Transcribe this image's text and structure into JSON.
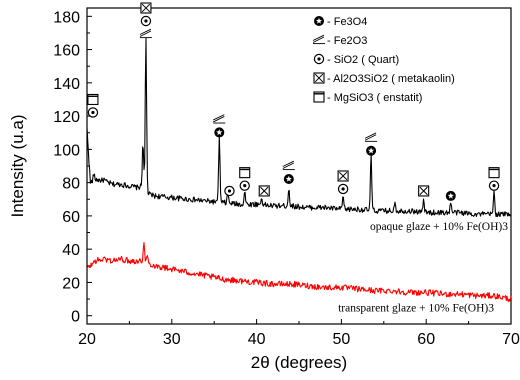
{
  "chart_data": {
    "type": "line",
    "xlabel": "2θ (degrees)",
    "ylabel": "Intensity (u.a)",
    "xlim": [
      20,
      70
    ],
    "ylim": [
      -5,
      185
    ],
    "xticks": [
      20,
      30,
      40,
      50,
      60,
      70
    ],
    "yticks": [
      0,
      20,
      40,
      60,
      80,
      100,
      120,
      140,
      160,
      180
    ],
    "grid": false,
    "legend_position": "top-right",
    "legend": [
      {
        "symbol": "circled-star",
        "label": "- Fe3O4"
      },
      {
        "symbol": "hatch-mark",
        "label": "- Fe2O3"
      },
      {
        "symbol": "circled-dot",
        "label": "- SiO2 ( Quart)"
      },
      {
        "symbol": "boxed-x",
        "label": "- Al2O3SiO2 ( metakaolin)"
      },
      {
        "symbol": "open-square",
        "label": "- MgSiO3 ( enstatit)"
      }
    ],
    "series": [
      {
        "label": "opaque glaze + 10% Fe(OH)3",
        "color": "#000000",
        "baseline": [
          [
            20,
            112
          ],
          [
            20.4,
            80
          ],
          [
            21,
            82
          ],
          [
            22,
            81
          ],
          [
            23,
            79
          ],
          [
            24,
            79
          ],
          [
            25,
            78
          ],
          [
            26,
            77
          ],
          [
            26.5,
            78
          ],
          [
            27.3,
            73
          ],
          [
            28,
            72
          ],
          [
            30,
            71
          ],
          [
            32,
            70
          ],
          [
            34,
            69
          ],
          [
            36,
            68
          ],
          [
            38,
            67
          ],
          [
            40,
            67
          ],
          [
            42,
            66
          ],
          [
            44,
            66
          ],
          [
            46,
            65
          ],
          [
            48,
            65
          ],
          [
            50,
            64
          ],
          [
            52,
            64
          ],
          [
            54,
            63
          ],
          [
            56,
            63
          ],
          [
            58,
            63
          ],
          [
            60,
            62
          ],
          [
            62,
            62
          ],
          [
            64,
            62
          ],
          [
            66,
            61
          ],
          [
            68,
            61
          ],
          [
            70,
            61
          ]
        ],
        "peaks": [
          [
            20.8,
            85
          ],
          [
            22,
            82
          ],
          [
            26.6,
            105
          ],
          [
            26.95,
            167
          ],
          [
            35.6,
            108
          ],
          [
            36.6,
            74
          ],
          [
            38.6,
            75
          ],
          [
            40.6,
            71
          ],
          [
            43.8,
            77
          ],
          [
            50.2,
            72
          ],
          [
            53.5,
            97
          ],
          [
            56.3,
            69
          ],
          [
            59.7,
            70
          ],
          [
            62.9,
            68
          ],
          [
            68.0,
            75
          ]
        ]
      },
      {
        "label": "transparent glaze + 10% Fe(OH)3",
        "color": "#ff0000",
        "baseline": [
          [
            20,
            28
          ],
          [
            21,
            33
          ],
          [
            22,
            34
          ],
          [
            23,
            33
          ],
          [
            24,
            34
          ],
          [
            25,
            33
          ],
          [
            26,
            33
          ],
          [
            27,
            32
          ],
          [
            28,
            30
          ],
          [
            30,
            28
          ],
          [
            32,
            26
          ],
          [
            34,
            24
          ],
          [
            36,
            22
          ],
          [
            38,
            21
          ],
          [
            40,
            20
          ],
          [
            42,
            19
          ],
          [
            44,
            19
          ],
          [
            46,
            18
          ],
          [
            48,
            17
          ],
          [
            50,
            17
          ],
          [
            52,
            16
          ],
          [
            54,
            15
          ],
          [
            56,
            15
          ],
          [
            58,
            14
          ],
          [
            60,
            14
          ],
          [
            62,
            13
          ],
          [
            64,
            13
          ],
          [
            66,
            12
          ],
          [
            68,
            12
          ],
          [
            70,
            10
          ]
        ],
        "peaks": [
          [
            26.7,
            45
          ],
          [
            27.1,
            36
          ]
        ]
      }
    ],
    "phase_markers": [
      {
        "x": 20.7,
        "y": 130,
        "symbols": [
          "open-square",
          "circled-dot"
        ]
      },
      {
        "x": 26.95,
        "y": 185,
        "symbols": [
          "boxed-x",
          "circled-dot",
          "hatch-mark"
        ]
      },
      {
        "x": 35.6,
        "y": 118,
        "symbols": [
          "hatch-mark",
          "circled-star"
        ]
      },
      {
        "x": 36.8,
        "y": 75,
        "symbols": [
          "circled-dot"
        ]
      },
      {
        "x": 38.6,
        "y": 86,
        "symbols": [
          "open-square",
          "circled-dot"
        ]
      },
      {
        "x": 40.9,
        "y": 75,
        "symbols": [
          "boxed-x"
        ]
      },
      {
        "x": 43.8,
        "y": 90,
        "symbols": [
          "hatch-mark",
          "circled-star"
        ]
      },
      {
        "x": 50.2,
        "y": 84,
        "symbols": [
          "boxed-x",
          "circled-dot"
        ]
      },
      {
        "x": 53.5,
        "y": 107,
        "symbols": [
          "hatch-mark",
          "circled-star"
        ]
      },
      {
        "x": 59.7,
        "y": 75,
        "symbols": [
          "boxed-x"
        ]
      },
      {
        "x": 62.9,
        "y": 72,
        "symbols": [
          "circled-star"
        ]
      },
      {
        "x": 68.0,
        "y": 86,
        "symbols": [
          "open-square",
          "circled-dot"
        ]
      }
    ]
  }
}
